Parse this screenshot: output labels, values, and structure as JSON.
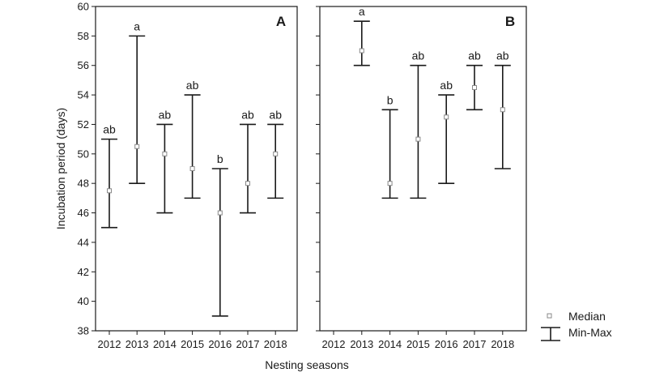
{
  "chart_data": {
    "type": "range",
    "xlabel": "Nesting seasons",
    "ylabel": "Incubation period (days)",
    "ylim": [
      38,
      60
    ],
    "yticks": [
      38,
      40,
      42,
      44,
      46,
      48,
      50,
      52,
      54,
      56,
      58,
      60
    ],
    "legend": {
      "placement": "bottom-right",
      "entries": [
        {
          "label": "Median",
          "marker": "square-icon"
        },
        {
          "label": "Min-Max",
          "marker": "whisker-icon"
        }
      ]
    },
    "panels": [
      {
        "label": "A",
        "categories": [
          "2012",
          "2013",
          "2014",
          "2015",
          "2016",
          "2017",
          "2018"
        ],
        "median": [
          47.5,
          50.5,
          50,
          49,
          46,
          48,
          50
        ],
        "min": [
          45,
          48,
          46,
          47,
          39,
          46,
          47
        ],
        "max": [
          51,
          58,
          52,
          54,
          49,
          52,
          52
        ],
        "significance": [
          "ab",
          "a",
          "ab",
          "ab",
          "b",
          "ab",
          "ab"
        ]
      },
      {
        "label": "B",
        "categories": [
          "2012",
          "2013",
          "2014",
          "2015",
          "2016",
          "2017",
          "2018"
        ],
        "median": [
          null,
          57,
          48,
          51,
          52.5,
          54.5,
          53
        ],
        "min": [
          null,
          56,
          47,
          47,
          48,
          53,
          49
        ],
        "max": [
          null,
          59,
          53,
          56,
          54,
          56,
          56
        ],
        "significance": [
          "",
          "a",
          "b",
          "ab",
          "ab",
          "ab",
          "ab"
        ]
      }
    ]
  }
}
